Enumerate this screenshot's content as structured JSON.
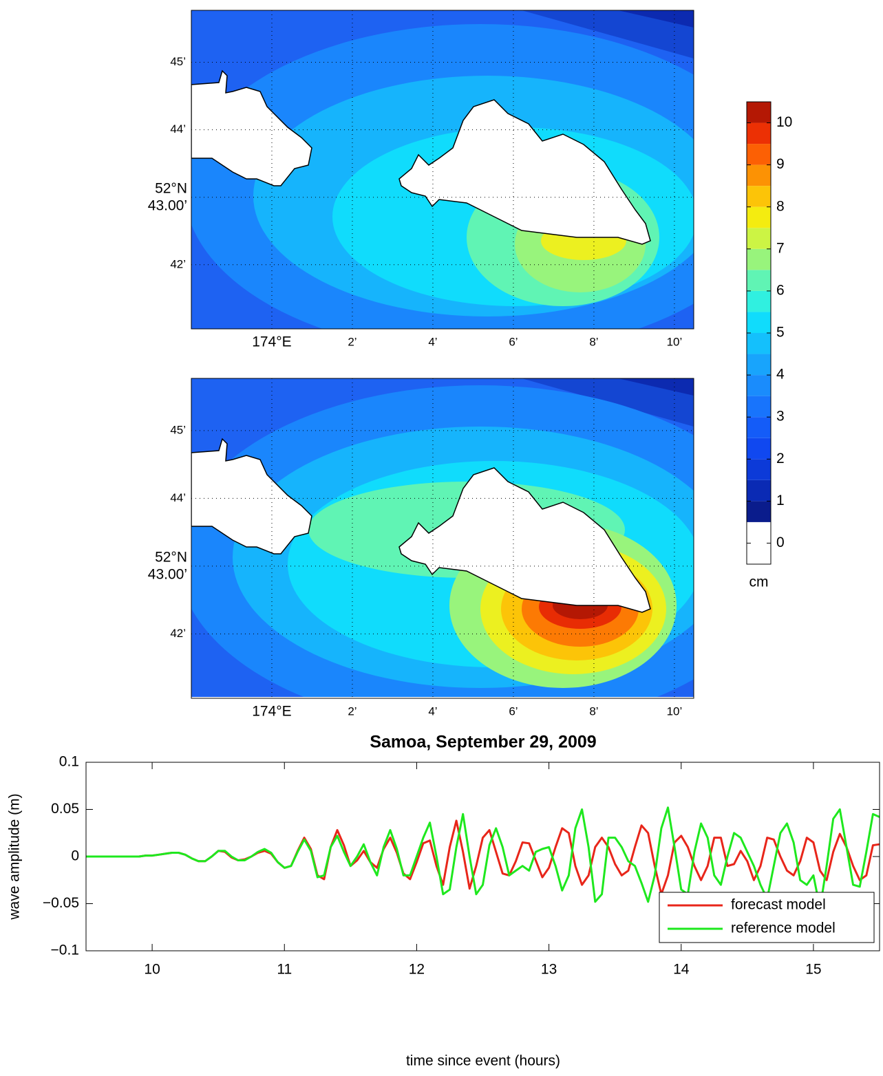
{
  "chart_data": [
    {
      "type": "map",
      "xlim": [
        -2,
        10.48
      ],
      "ylim": [
        41.05,
        45.77
      ],
      "xticks": [
        {
          "value": 0,
          "label": "174°E"
        },
        {
          "value": 2,
          "label": "2’"
        },
        {
          "value": 4,
          "label": "4’"
        },
        {
          "value": 6,
          "label": "6’"
        },
        {
          "value": 8,
          "label": "8’"
        },
        {
          "value": 10,
          "label": "10’"
        }
      ],
      "yticks": [
        {
          "value": 42,
          "label": "42’"
        },
        {
          "value": 43,
          "label": [
            "52°N",
            "43.00’"
          ]
        },
        {
          "value": 44,
          "label": "44’"
        },
        {
          "value": 45,
          "label": "45’"
        }
      ],
      "grid": true
    },
    {
      "type": "map",
      "xlim": [
        -2,
        10.48
      ],
      "ylim": [
        41.05,
        45.77
      ],
      "xticks": [
        {
          "value": 0,
          "label": "174°E"
        },
        {
          "value": 2,
          "label": "2’"
        },
        {
          "value": 4,
          "label": "4’"
        },
        {
          "value": 6,
          "label": "6’"
        },
        {
          "value": 8,
          "label": "8’"
        },
        {
          "value": 10,
          "label": "10’"
        }
      ],
      "yticks": [
        {
          "value": 42,
          "label": "42’"
        },
        {
          "value": 43,
          "label": [
            "52°N",
            "43.00’"
          ]
        },
        {
          "value": 44,
          "label": "44’"
        },
        {
          "value": 45,
          "label": "45’"
        }
      ],
      "grid": true
    },
    {
      "type": "colorbar",
      "unit": "cm",
      "ylim": [
        -0.5,
        10.5
      ],
      "yticks": [
        0,
        1,
        2,
        3,
        4,
        5,
        6,
        7,
        8,
        9,
        10
      ],
      "levels": [
        -0.5,
        0.5,
        1,
        1.5,
        2,
        2.5,
        3,
        3.5,
        4,
        4.5,
        5,
        5.5,
        6,
        6.5,
        7,
        7.5,
        8,
        8.5,
        9,
        9.5,
        10,
        10.5
      ],
      "colors": [
        "#ffffff",
        "#0a1c8c",
        "#0a2ab4",
        "#0c3ad8",
        "#1048f0",
        "#145cf8",
        "#1874fc",
        "#1a8cfc",
        "#18a4fc",
        "#14c0fc",
        "#10dcfc",
        "#30f0e0",
        "#60f4b4",
        "#98f47c",
        "#ccf444",
        "#f4ec10",
        "#fcc408",
        "#fc9204",
        "#fc6004",
        "#ec3004",
        "#b41804"
      ]
    },
    {
      "type": "line",
      "title": "Samoa, September 29, 2009",
      "xlabel": "time since event (hours)",
      "ylabel": "wave amplitude (m)",
      "xlim": [
        9.5,
        15.5
      ],
      "ylim": [
        -0.1,
        0.1
      ],
      "xticks": [
        10,
        11,
        12,
        13,
        14,
        15
      ],
      "yticks": [
        {
          "value": -0.1,
          "label": "−0.1"
        },
        {
          "value": -0.05,
          "label": "−0.05"
        },
        0,
        0.05,
        0.1
      ],
      "grid": false,
      "legend": "lower right",
      "x": [
        9.5,
        9.55,
        9.6,
        9.65,
        9.7,
        9.75,
        9.8,
        9.85,
        9.9,
        9.95,
        10,
        10.05,
        10.1,
        10.15,
        10.2,
        10.25,
        10.3,
        10.35,
        10.4,
        10.45,
        10.5,
        10.55,
        10.6,
        10.65,
        10.7,
        10.75,
        10.8,
        10.85,
        10.9,
        10.95,
        11,
        11.05,
        11.1,
        11.15,
        11.2,
        11.25,
        11.3,
        11.35,
        11.4,
        11.45,
        11.5,
        11.55,
        11.6,
        11.65,
        11.7,
        11.75,
        11.8,
        11.85,
        11.9,
        11.95,
        12,
        12.05,
        12.1,
        12.15,
        12.2,
        12.25,
        12.3,
        12.35,
        12.4,
        12.45,
        12.5,
        12.55,
        12.6,
        12.65,
        12.7,
        12.75,
        12.8,
        12.85,
        12.9,
        12.95,
        13,
        13.05,
        13.1,
        13.15,
        13.2,
        13.25,
        13.3,
        13.35,
        13.4,
        13.45,
        13.5,
        13.55,
        13.6,
        13.65,
        13.7,
        13.75,
        13.8,
        13.85,
        13.9,
        13.95,
        14,
        14.05,
        14.1,
        14.15,
        14.2,
        14.25,
        14.3,
        14.35,
        14.4,
        14.45,
        14.5,
        14.55,
        14.6,
        14.65,
        14.7,
        14.75,
        14.8,
        14.85,
        14.9,
        14.95,
        15,
        15.05,
        15.1,
        15.15,
        15.2,
        15.25,
        15.3,
        15.35,
        15.4,
        15.45,
        15.5
      ],
      "series": [
        {
          "name": "forecast model",
          "color": "#e8261a",
          "values": [
            0,
            0,
            0,
            0,
            0,
            0,
            0,
            0,
            0,
            0.001,
            0.001,
            0.002,
            0.003,
            0.004,
            0.004,
            0.002,
            -0.002,
            -0.005,
            -0.005,
            0,
            0.006,
            0.005,
            -0.001,
            -0.004,
            -0.003,
            0,
            0.004,
            0.006,
            0.003,
            -0.006,
            -0.012,
            -0.01,
            0.006,
            0.02,
            0.008,
            -0.02,
            -0.024,
            0.01,
            0.028,
            0.012,
            -0.01,
            -0.004,
            0.006,
            -0.006,
            -0.012,
            0.008,
            0.02,
            0.004,
            -0.018,
            -0.024,
            -0.006,
            0.014,
            0.017,
            -0.01,
            -0.03,
            0.01,
            0.038,
            0.005,
            -0.034,
            -0.01,
            0.02,
            0.028,
            0.005,
            -0.018,
            -0.02,
            -0.005,
            0.015,
            0.014,
            -0.004,
            -0.022,
            -0.012,
            0.01,
            0.03,
            0.025,
            -0.01,
            -0.03,
            -0.02,
            0.01,
            0.02,
            0.01,
            -0.008,
            -0.02,
            -0.015,
            0.01,
            0.033,
            0.025,
            -0.01,
            -0.04,
            -0.02,
            0.015,
            0.022,
            0.01,
            -0.01,
            -0.025,
            -0.01,
            0.02,
            0.02,
            -0.01,
            -0.008,
            0.006,
            -0.005,
            -0.025,
            -0.01,
            0.02,
            0.018,
            0,
            -0.015,
            -0.02,
            -0.005,
            0.02,
            0.015,
            -0.015,
            -0.025,
            0.005,
            0.024,
            0.01,
            -0.01,
            -0.025,
            -0.02,
            0.012,
            0.013
          ]
        },
        {
          "name": "reference model",
          "color": "#1ee81e",
          "values": [
            0,
            0,
            0,
            0,
            0,
            0,
            0,
            0,
            0,
            0.001,
            0.001,
            0.002,
            0.003,
            0.004,
            0.004,
            0.002,
            -0.002,
            -0.005,
            -0.005,
            0,
            0.006,
            0.006,
            0,
            -0.004,
            -0.004,
            0,
            0.005,
            0.008,
            0.004,
            -0.006,
            -0.012,
            -0.01,
            0.005,
            0.018,
            0.006,
            -0.022,
            -0.02,
            0.01,
            0.022,
            0.005,
            -0.01,
            0,
            0.013,
            -0.006,
            -0.02,
            0.01,
            0.028,
            0.008,
            -0.02,
            -0.02,
            0,
            0.02,
            0.036,
            0,
            -0.04,
            -0.035,
            0.01,
            0.045,
            0,
            -0.04,
            -0.03,
            0.012,
            0.03,
            0.01,
            -0.02,
            -0.015,
            -0.01,
            -0.015,
            0.005,
            0.008,
            0.01,
            -0.01,
            -0.036,
            -0.02,
            0.03,
            0.05,
            0.01,
            -0.048,
            -0.04,
            0.02,
            0.02,
            0.01,
            -0.005,
            -0.01,
            -0.028,
            -0.048,
            -0.02,
            0.03,
            0.052,
            0.01,
            -0.035,
            -0.04,
            0.005,
            0.035,
            0.02,
            -0.02,
            -0.03,
            0,
            0.025,
            0.02,
            0.005,
            -0.01,
            -0.03,
            -0.045,
            -0.01,
            0.025,
            0.035,
            0.015,
            -0.025,
            -0.03,
            -0.02,
            -0.055,
            -0.01,
            0.04,
            0.05,
            0.01,
            -0.03,
            -0.032,
            0.005,
            0.045,
            0.042
          ]
        }
      ]
    }
  ]
}
